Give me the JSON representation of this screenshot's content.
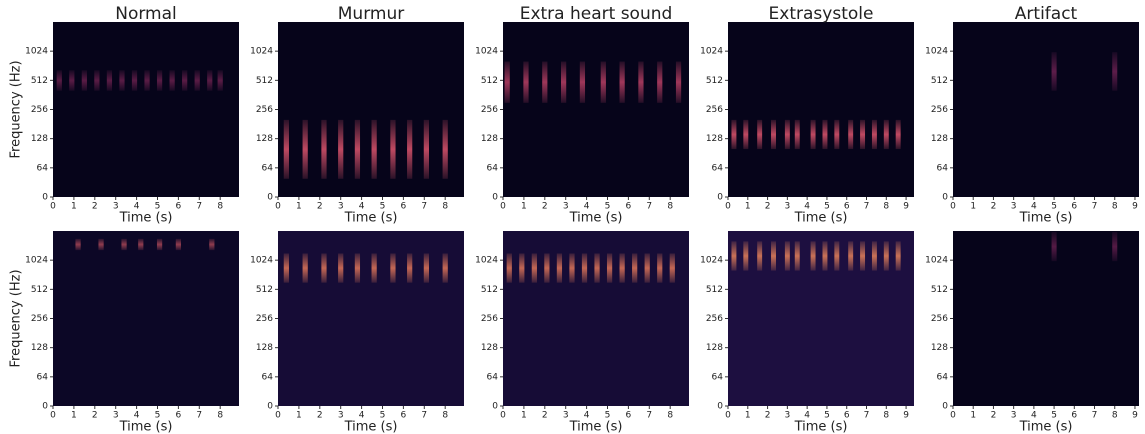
{
  "chart_data": [
    {
      "type": "heatmap",
      "title": "Normal",
      "xlabel": "Time (s)",
      "ylabel": "Frequency (Hz)",
      "xlim": [
        0,
        8.9
      ],
      "xticks": [
        0,
        1,
        2,
        3,
        4,
        5,
        6,
        7,
        8
      ],
      "ylim": [
        0,
        2048
      ],
      "yscale": "symlog",
      "linthresh": 64,
      "yticks": [
        0,
        64,
        128,
        256,
        512,
        1024
      ],
      "background": "#06041a",
      "color": "#c0397a",
      "beat_times": [
        0.3,
        0.9,
        1.5,
        2.1,
        2.7,
        3.3,
        3.9,
        4.5,
        5.1,
        5.7,
        6.3,
        6.9,
        7.5,
        8.0
      ],
      "band": [
        400,
        650
      ],
      "intensity": 0.45
    },
    {
      "type": "heatmap",
      "title": "Murmur",
      "xlabel": "Time (s)",
      "xlim": [
        0,
        8.9
      ],
      "xticks": [
        0,
        1,
        2,
        3,
        4,
        5,
        6,
        7,
        8
      ],
      "ylim": [
        0,
        2048
      ],
      "yscale": "symlog",
      "linthresh": 64,
      "yticks": [
        0,
        64,
        128,
        256,
        512,
        1024
      ],
      "background": "#06041a",
      "color": "#e0556e",
      "beat_times": [
        0.4,
        1.3,
        2.2,
        3.0,
        3.8,
        4.6,
        5.5,
        6.3,
        7.1,
        8.0
      ],
      "band": [
        40,
        200
      ],
      "intensity": 0.85
    },
    {
      "type": "heatmap",
      "title": "Extra heart sound",
      "xlabel": "Time (s)",
      "xlim": [
        0,
        8.9
      ],
      "xticks": [
        0,
        1,
        2,
        3,
        4,
        5,
        6,
        7,
        8
      ],
      "ylim": [
        0,
        2048
      ],
      "yscale": "symlog",
      "linthresh": 64,
      "yticks": [
        0,
        64,
        128,
        256,
        512,
        1024
      ],
      "background": "#06041a",
      "color": "#d2486f",
      "beat_times": [
        0.2,
        1.1,
        2.0,
        2.9,
        3.8,
        4.8,
        5.7,
        6.6,
        7.5,
        8.4
      ],
      "band": [
        300,
        800
      ],
      "intensity": 0.75
    },
    {
      "type": "heatmap",
      "title": "Extrasystole",
      "xlabel": "Time (s)",
      "xlim": [
        0,
        9.4
      ],
      "xticks": [
        0,
        1,
        2,
        3,
        4,
        5,
        6,
        7,
        8,
        9
      ],
      "ylim": [
        0,
        2048
      ],
      "yscale": "symlog",
      "linthresh": 64,
      "yticks": [
        0,
        64,
        128,
        256,
        512,
        1024
      ],
      "background": "#06041a",
      "color": "#e0556e",
      "beat_times": [
        0.3,
        0.9,
        1.6,
        2.3,
        3.0,
        3.5,
        4.3,
        4.9,
        5.5,
        6.2,
        6.8,
        7.4,
        8.0,
        8.6
      ],
      "band": [
        100,
        200
      ],
      "intensity": 0.85
    },
    {
      "type": "heatmap",
      "title": "Artifact",
      "xlabel": "Time (s)",
      "xlim": [
        0,
        9.2
      ],
      "xticks": [
        0,
        1,
        2,
        3,
        4,
        5,
        6,
        7,
        8,
        9
      ],
      "ylim": [
        0,
        2048
      ],
      "yscale": "symlog",
      "linthresh": 64,
      "yticks": [
        0,
        64,
        128,
        256,
        512,
        1024
      ],
      "background": "#06041a",
      "color": "#b5367a",
      "beat_times": [
        5.0,
        8.0
      ],
      "band": [
        400,
        1000
      ],
      "intensity": 0.5
    },
    {
      "type": "heatmap",
      "xlabel": "Time (s)",
      "ylabel": "Frequency (Hz)",
      "xlim": [
        0,
        8.9
      ],
      "xticks": [
        0,
        1,
        2,
        3,
        4,
        5,
        6,
        7,
        8
      ],
      "ylim": [
        0,
        2048
      ],
      "yscale": "symlog",
      "linthresh": 64,
      "yticks": [
        0,
        64,
        128,
        256,
        512,
        1024
      ],
      "background": "#0c0726",
      "color": "#e8606a",
      "beat_times": [
        1.2,
        2.3,
        3.4,
        4.2,
        5.1,
        6.0,
        7.6
      ],
      "band": [
        1300,
        1700
      ],
      "intensity": 0.6
    },
    {
      "type": "heatmap",
      "xlabel": "Time (s)",
      "xlim": [
        0,
        8.9
      ],
      "xticks": [
        0,
        1,
        2,
        3,
        4,
        5,
        6,
        7,
        8
      ],
      "ylim": [
        0,
        2048
      ],
      "yscale": "symlog",
      "linthresh": 64,
      "yticks": [
        0,
        64,
        128,
        256,
        512,
        1024
      ],
      "background": "#160c36",
      "color": "#f07e5c",
      "beat_times": [
        0.4,
        1.3,
        2.2,
        3.0,
        3.8,
        4.6,
        5.5,
        6.3,
        7.1,
        8.0
      ],
      "band": [
        600,
        1200
      ],
      "intensity": 0.8
    },
    {
      "type": "heatmap",
      "xlabel": "Time (s)",
      "xlim": [
        0,
        8.9
      ],
      "xticks": [
        0,
        1,
        2,
        3,
        4,
        5,
        6,
        7,
        8
      ],
      "ylim": [
        0,
        2048
      ],
      "yscale": "symlog",
      "linthresh": 64,
      "yticks": [
        0,
        64,
        128,
        256,
        512,
        1024
      ],
      "background": "#160c36",
      "color": "#f07e5c",
      "beat_times": [
        0.3,
        0.9,
        1.5,
        2.1,
        2.7,
        3.3,
        3.9,
        4.5,
        5.1,
        5.7,
        6.3,
        6.9,
        7.5,
        8.1
      ],
      "band": [
        600,
        1200
      ],
      "intensity": 0.8
    },
    {
      "type": "heatmap",
      "xlabel": "Time (s)",
      "xlim": [
        0,
        9.4
      ],
      "xticks": [
        0,
        1,
        2,
        3,
        4,
        5,
        6,
        7,
        8,
        9
      ],
      "ylim": [
        0,
        2048
      ],
      "yscale": "symlog",
      "linthresh": 64,
      "yticks": [
        0,
        64,
        128,
        256,
        512,
        1024
      ],
      "background": "#1d0f40",
      "color": "#f48a5c",
      "beat_times": [
        0.3,
        0.9,
        1.6,
        2.3,
        3.0,
        3.5,
        4.3,
        4.9,
        5.5,
        6.2,
        6.8,
        7.4,
        8.0,
        8.6
      ],
      "band": [
        800,
        1600
      ],
      "intensity": 0.8
    },
    {
      "type": "heatmap",
      "xlabel": "Time (s)",
      "xlim": [
        0,
        9.2
      ],
      "xticks": [
        0,
        1,
        2,
        3,
        4,
        5,
        6,
        7,
        8,
        9
      ],
      "ylim": [
        0,
        2048
      ],
      "yscale": "symlog",
      "linthresh": 64,
      "yticks": [
        0,
        64,
        128,
        256,
        512,
        1024
      ],
      "background": "#06041a",
      "color": "#b5367a",
      "beat_times": [
        5.0,
        8.0
      ],
      "band": [
        1000,
        2000
      ],
      "intensity": 0.45
    }
  ]
}
